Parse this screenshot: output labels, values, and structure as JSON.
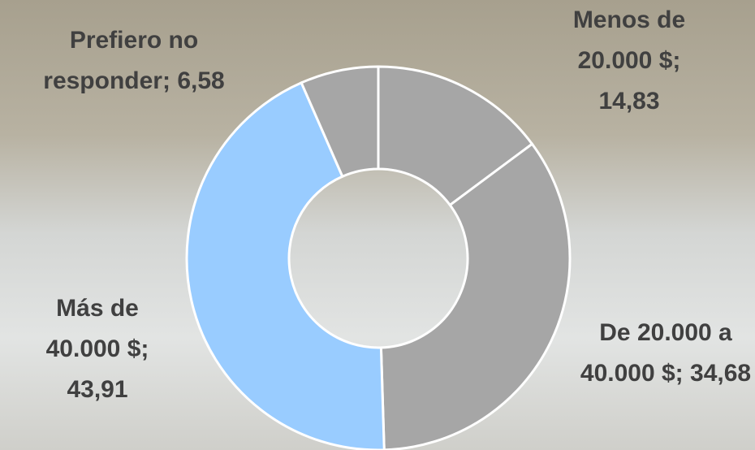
{
  "chart_data": {
    "type": "donut",
    "categories": [
      "Menos de 20.000 $",
      "De 20.000 a 40.000 $",
      "Más de 40.000 $",
      "Prefiero no responder"
    ],
    "values": [
      14.83,
      34.68,
      43.91,
      6.58
    ],
    "value_labels": [
      "14,83",
      "34,68",
      "43,91",
      "6,58"
    ],
    "label_separator": ";",
    "colors": [
      "#a6a6a6",
      "#a6a6a6",
      "#99ccff",
      "#a6a6a6"
    ]
  }
}
